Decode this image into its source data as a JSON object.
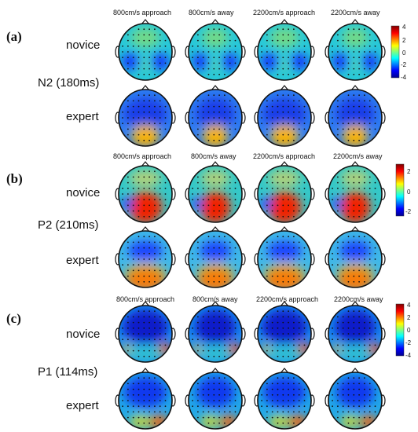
{
  "figure": {
    "panels": [
      {
        "label": "(a)",
        "component": "N2 (180ms)",
        "groups": [
          "novice",
          "expert"
        ],
        "conditions": [
          "800cm/s approach",
          "800cm/s away",
          "2200cm/s approach",
          "2200cm/s away"
        ],
        "colorbar_ticks": [
          "4",
          "2",
          "0",
          "-2",
          "-4"
        ]
      },
      {
        "label": "(b)",
        "component": "P2 (210ms)",
        "groups": [
          "novice",
          "expert"
        ],
        "conditions": [
          "800cm/s approach",
          "800cm/s away",
          "2200cm/s approach",
          "2200cm/s away"
        ],
        "colorbar_ticks": [
          "2",
          "0",
          "-2"
        ]
      },
      {
        "label": "(c)",
        "component": "P1 (114ms)",
        "groups": [
          "novice",
          "expert"
        ],
        "conditions": [
          "800cm/s approach",
          "800cm/s away",
          "2200cm/s approach",
          "2200cm/s away"
        ],
        "colorbar_ticks": [
          "4",
          "2",
          "0",
          "-2",
          "-4"
        ]
      }
    ],
    "colormap": [
      "#00008f",
      "#0000ff",
      "#00ffff",
      "#ffff00",
      "#ff0000",
      "#800000"
    ]
  }
}
